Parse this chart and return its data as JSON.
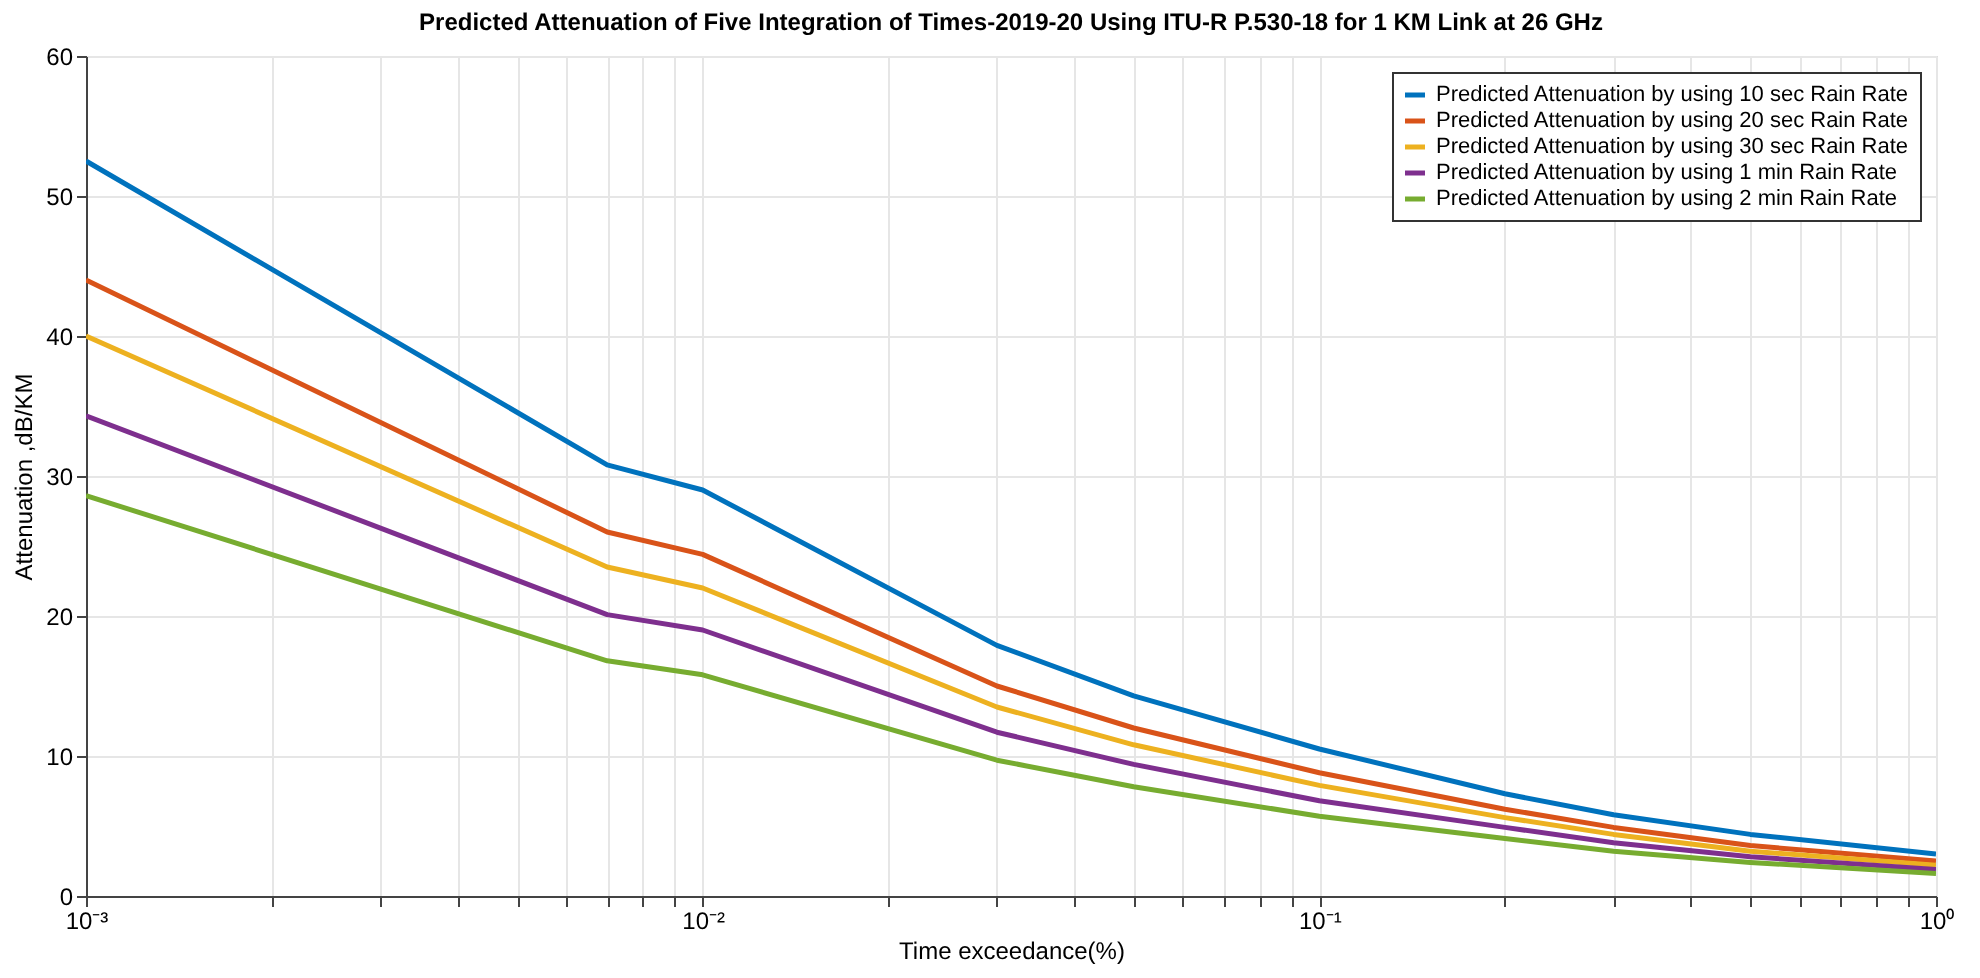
{
  "chart_data": {
    "type": "line",
    "title": "Predicted Attenuation of Five Integration of Times-2019-20 Using ITU-R P.530-18 for 1 KM Link at 26 GHz",
    "xlabel": "Time exceedance(%)",
    "ylabel": "Attenuation ,dB/KM",
    "x": [
      0.001,
      0.007,
      0.01,
      0.03,
      0.05,
      0.1,
      0.2,
      0.3,
      0.5,
      1
    ],
    "series": [
      {
        "name": "Predicted Attenuation by using 10 sec Rain Rate",
        "color": "#0072bd",
        "values": [
          52.5,
          30.8,
          29,
          17.9,
          14.3,
          10.5,
          7.3,
          5.8,
          4.4,
          3.0
        ]
      },
      {
        "name": "Predicted Attenuation by using 20 sec Rain Rate",
        "color": "#d95319",
        "values": [
          44,
          26,
          24.4,
          15,
          12,
          8.8,
          6.2,
          4.9,
          3.6,
          2.5
        ]
      },
      {
        "name": "Predicted Attenuation by using 30 sec Rain Rate",
        "color": "#edb120",
        "values": [
          40,
          23.5,
          22,
          13.5,
          10.8,
          7.9,
          5.6,
          4.4,
          3.2,
          2.2
        ]
      },
      {
        "name": "Predicted Attenuation by using 1 min Rain Rate",
        "color": "#7e2f8e",
        "values": [
          34.3,
          20.1,
          19,
          11.7,
          9.4,
          6.8,
          4.9,
          3.8,
          2.8,
          1.9
        ]
      },
      {
        "name": "Predicted Attenuation by using 2 min Rain Rate",
        "color": "#77ac30",
        "values": [
          28.6,
          16.8,
          15.8,
          9.7,
          7.8,
          5.7,
          4.1,
          3.2,
          2.4,
          1.6
        ]
      }
    ],
    "log": "x",
    "xlim": [
      0.001,
      1
    ],
    "ylim": [
      0,
      60
    ],
    "xticks": [
      {
        "value": 0.001,
        "label": "10⁻³"
      },
      {
        "value": 0.002,
        "label": null
      },
      {
        "value": 0.003,
        "label": null
      },
      {
        "value": 0.004,
        "label": null
      },
      {
        "value": 0.005,
        "label": null
      },
      {
        "value": 0.006,
        "label": null
      },
      {
        "value": 0.007,
        "label": null
      },
      {
        "value": 0.008,
        "label": null
      },
      {
        "value": 0.009,
        "label": null
      },
      {
        "value": 0.01,
        "label": "10⁻²"
      },
      {
        "value": 0.02,
        "label": null
      },
      {
        "value": 0.03,
        "label": null
      },
      {
        "value": 0.04,
        "label": null
      },
      {
        "value": 0.05,
        "label": null
      },
      {
        "value": 0.06,
        "label": null
      },
      {
        "value": 0.07,
        "label": null
      },
      {
        "value": 0.08,
        "label": null
      },
      {
        "value": 0.09,
        "label": null
      },
      {
        "value": 0.1,
        "label": "10⁻¹"
      },
      {
        "value": 0.2,
        "label": null
      },
      {
        "value": 0.3,
        "label": null
      },
      {
        "value": 0.4,
        "label": null
      },
      {
        "value": 0.5,
        "label": null
      },
      {
        "value": 0.6,
        "label": null
      },
      {
        "value": 0.7,
        "label": null
      },
      {
        "value": 0.8,
        "label": null
      },
      {
        "value": 0.9,
        "label": null
      },
      {
        "value": 1,
        "label": "10⁰"
      }
    ],
    "yticks": [
      0,
      10,
      20,
      30,
      40,
      50,
      60
    ],
    "grid": true,
    "legend": "top right",
    "marker": "none",
    "line_style": "solid"
  }
}
